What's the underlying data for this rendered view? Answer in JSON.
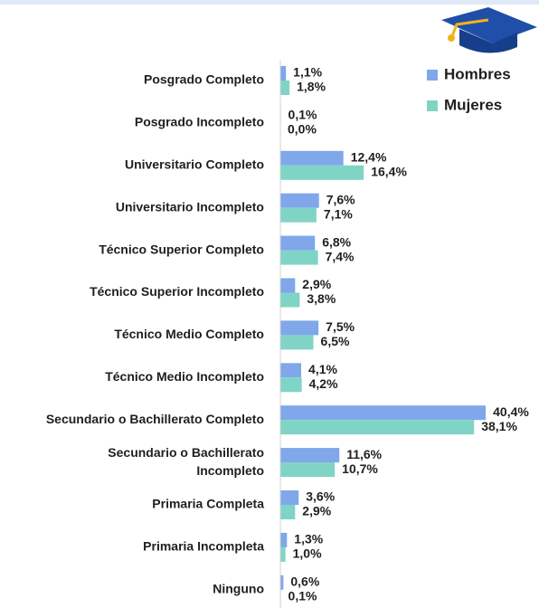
{
  "chart_data": {
    "type": "hbar",
    "categories": [
      "Posgrado Completo",
      "Posgrado Incompleto",
      "Universitario Completo",
      "Universitario Incompleto",
      "Técnico Superior Completo",
      "Técnico Superior Incompleto",
      "Técnico Medio Completo",
      "Técnico Medio Incompleto",
      "Secundario o Bachillerato Completo",
      [
        "Secundario o Bachillerato",
        "Incompleto"
      ],
      "Primaria Completa",
      "Primaria Incompleta",
      "Ninguno"
    ],
    "series": [
      {
        "name": "Hombres",
        "color": "#7fa7ea",
        "values": [
          1.1,
          0.1,
          12.4,
          7.6,
          6.8,
          2.9,
          7.5,
          4.1,
          40.4,
          11.6,
          3.6,
          1.3,
          0.6
        ],
        "value_labels": [
          "1,1%",
          "0,1%",
          "12,4%",
          "7,6%",
          "6,8%",
          "2,9%",
          "7,5%",
          "4,1%",
          "40,4%",
          "11,6%",
          "3,6%",
          "1,3%",
          "0,6%"
        ]
      },
      {
        "name": "Mujeres",
        "color": "#80d4c5",
        "values": [
          1.8,
          0.0,
          16.4,
          7.1,
          7.4,
          3.8,
          6.5,
          4.2,
          38.1,
          10.7,
          2.9,
          1.0,
          0.1
        ],
        "value_labels": [
          "1,8%",
          "0,0%",
          "16,4%",
          "7,1%",
          "7,4%",
          "3,8%",
          "6,5%",
          "4,2%",
          "38,1%",
          "10,7%",
          "2,9%",
          "1,0%",
          "0,1%"
        ]
      }
    ],
    "xlim": [
      0,
      45
    ],
    "legend": "top-right"
  }
}
